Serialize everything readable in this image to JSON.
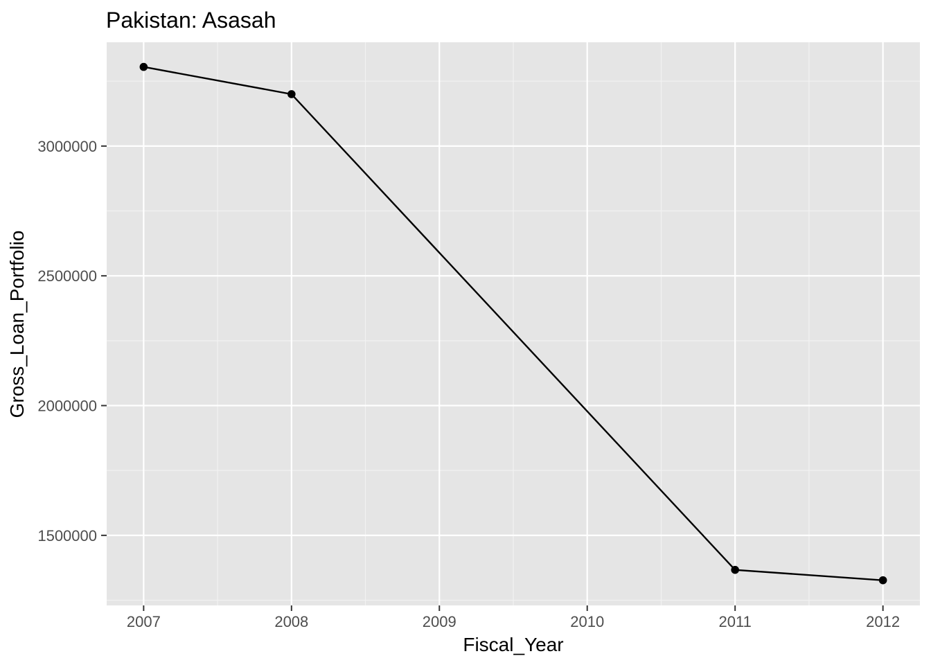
{
  "chart_data": {
    "type": "line",
    "title": "Pakistan:  Asasah",
    "xlabel": "Fiscal_Year",
    "ylabel": "Gross_Loan_Portfolio",
    "x_ticks": [
      "2007",
      "2008",
      "2009",
      "2010",
      "2011",
      "2012"
    ],
    "y_ticks": [
      "1500000",
      "2000000",
      "2500000",
      "3000000"
    ],
    "xlim": [
      2006.75,
      2012.25
    ],
    "ylim": [
      1230000,
      3400000
    ],
    "grid": true,
    "legend": "none",
    "series": [
      {
        "x": [
          2007,
          2008,
          2011,
          2012
        ],
        "values": [
          3305000,
          3200000,
          1367000,
          1327000
        ]
      }
    ],
    "colors": {
      "panel_bg": "#e5e5e5",
      "grid_major": "#ffffff",
      "grid_minor": "#f2f2f2",
      "line": "#000000",
      "point": "#000000",
      "tick_text": "#4d4d4d",
      "text": "#000000"
    }
  }
}
